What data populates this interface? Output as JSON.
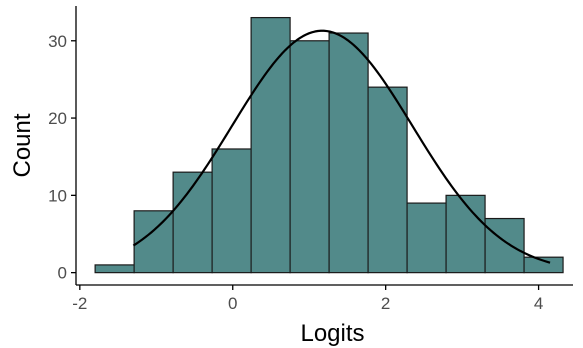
{
  "chart_data": {
    "type": "bar",
    "subtype": "histogram-with-density-curve",
    "title": "",
    "xlabel": "Logits",
    "ylabel": "Count",
    "xlim": [
      -2.05,
      4.45
    ],
    "ylim": [
      -1.6,
      34.5
    ],
    "x_ticks": [
      -2,
      0,
      2,
      4
    ],
    "x_tick_labels": [
      "-2",
      "0",
      "2",
      "4"
    ],
    "y_ticks": [
      0,
      10,
      20,
      30
    ],
    "y_tick_labels": [
      "0",
      "10",
      "20",
      "30"
    ],
    "grid": false,
    "legend": "none",
    "bins": [
      {
        "x0": -1.8,
        "x1": -1.29,
        "count": 1
      },
      {
        "x0": -1.29,
        "x1": -0.78,
        "count": 8
      },
      {
        "x0": -0.78,
        "x1": -0.27,
        "count": 13
      },
      {
        "x0": -0.27,
        "x1": 0.24,
        "count": 16
      },
      {
        "x0": 0.24,
        "x1": 0.75,
        "count": 33
      },
      {
        "x0": 0.75,
        "x1": 1.26,
        "count": 30
      },
      {
        "x0": 1.26,
        "x1": 1.77,
        "count": 31
      },
      {
        "x0": 1.77,
        "x1": 2.28,
        "count": 24
      },
      {
        "x0": 2.28,
        "x1": 2.79,
        "count": 9
      },
      {
        "x0": 2.79,
        "x1": 3.3,
        "count": 10
      },
      {
        "x0": 3.3,
        "x1": 3.81,
        "count": 7
      },
      {
        "x0": 3.81,
        "x1": 4.32,
        "count": 2
      }
    ],
    "curve": {
      "type": "normal",
      "mean": 1.17,
      "sd": 1.18,
      "peak_count": 31.3,
      "x_range": [
        -1.3,
        4.15
      ]
    },
    "colors": {
      "bar_fill": "#528a8a",
      "bar_stroke": "#1a1a1a",
      "curve": "#000000",
      "axis": "#000000",
      "tick_text": "#4d4d4d",
      "title_text": "#000000"
    }
  }
}
